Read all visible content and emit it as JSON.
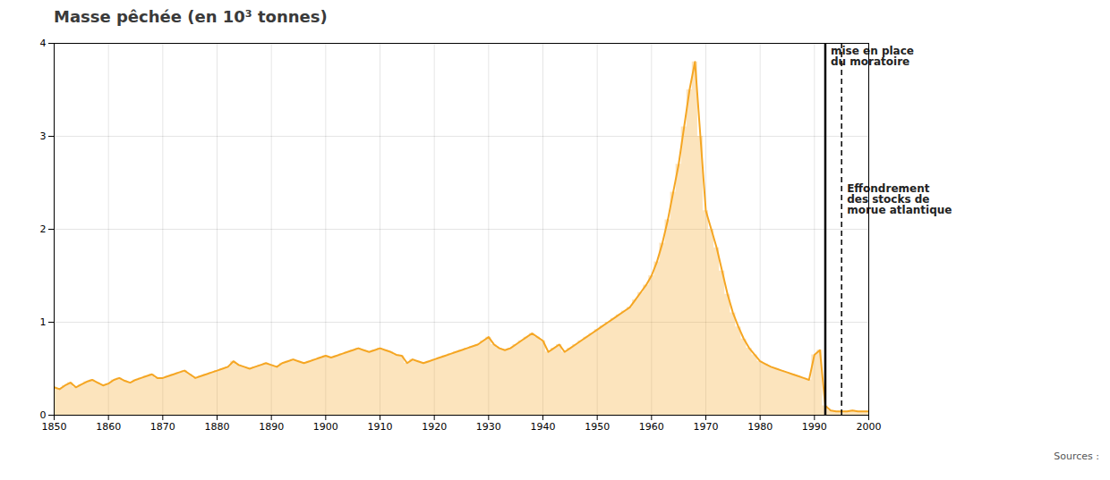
{
  "chart_data": {
    "type": "line",
    "title": "Masse pêchée (en 10³ tonnes)",
    "color": "#f5a623",
    "grid": true,
    "xlim": [
      1850,
      2000
    ],
    "ylim": [
      0,
      4
    ],
    "xticks": [
      1850,
      1860,
      1870,
      1880,
      1890,
      1900,
      1910,
      1920,
      1930,
      1940,
      1950,
      1960,
      1970,
      1980,
      1990,
      2000
    ],
    "yticks": [
      0,
      1,
      2,
      3,
      4
    ],
    "x": [
      1850,
      1851,
      1852,
      1853,
      1854,
      1855,
      1856,
      1857,
      1858,
      1859,
      1860,
      1861,
      1862,
      1863,
      1864,
      1865,
      1866,
      1867,
      1868,
      1869,
      1870,
      1871,
      1872,
      1873,
      1874,
      1875,
      1876,
      1877,
      1878,
      1879,
      1880,
      1881,
      1882,
      1883,
      1884,
      1885,
      1886,
      1887,
      1888,
      1889,
      1890,
      1891,
      1892,
      1893,
      1894,
      1895,
      1896,
      1897,
      1898,
      1899,
      1900,
      1901,
      1902,
      1903,
      1904,
      1905,
      1906,
      1907,
      1908,
      1909,
      1910,
      1911,
      1912,
      1913,
      1914,
      1915,
      1916,
      1917,
      1918,
      1919,
      1920,
      1921,
      1922,
      1923,
      1924,
      1925,
      1926,
      1927,
      1928,
      1929,
      1930,
      1931,
      1932,
      1933,
      1934,
      1935,
      1936,
      1937,
      1938,
      1939,
      1940,
      1941,
      1942,
      1943,
      1944,
      1945,
      1946,
      1947,
      1948,
      1949,
      1950,
      1951,
      1952,
      1953,
      1954,
      1955,
      1956,
      1957,
      1958,
      1959,
      1960,
      1961,
      1962,
      1963,
      1964,
      1965,
      1966,
      1967,
      1968,
      1969,
      1970,
      1971,
      1972,
      1973,
      1974,
      1975,
      1976,
      1977,
      1978,
      1979,
      1980,
      1981,
      1982,
      1983,
      1984,
      1985,
      1986,
      1987,
      1988,
      1989,
      1990,
      1991,
      1992,
      1993,
      1994,
      1995,
      1996,
      1997,
      1998,
      1999,
      2000
    ],
    "values": [
      0.3,
      0.28,
      0.32,
      0.35,
      0.3,
      0.33,
      0.36,
      0.38,
      0.35,
      0.32,
      0.34,
      0.38,
      0.4,
      0.37,
      0.35,
      0.38,
      0.4,
      0.42,
      0.44,
      0.4,
      0.4,
      0.42,
      0.44,
      0.46,
      0.48,
      0.44,
      0.4,
      0.42,
      0.44,
      0.46,
      0.48,
      0.5,
      0.52,
      0.58,
      0.54,
      0.52,
      0.5,
      0.52,
      0.54,
      0.56,
      0.54,
      0.52,
      0.56,
      0.58,
      0.6,
      0.58,
      0.56,
      0.58,
      0.6,
      0.62,
      0.64,
      0.62,
      0.64,
      0.66,
      0.68,
      0.7,
      0.72,
      0.7,
      0.68,
      0.7,
      0.72,
      0.7,
      0.68,
      0.65,
      0.64,
      0.56,
      0.6,
      0.58,
      0.56,
      0.58,
      0.6,
      0.62,
      0.64,
      0.66,
      0.68,
      0.7,
      0.72,
      0.74,
      0.76,
      0.8,
      0.84,
      0.76,
      0.72,
      0.7,
      0.72,
      0.76,
      0.8,
      0.84,
      0.88,
      0.84,
      0.8,
      0.68,
      0.72,
      0.76,
      0.68,
      0.72,
      0.76,
      0.8,
      0.84,
      0.88,
      0.92,
      0.96,
      1.0,
      1.04,
      1.08,
      1.12,
      1.16,
      1.24,
      1.32,
      1.4,
      1.5,
      1.65,
      1.85,
      2.1,
      2.4,
      2.7,
      3.1,
      3.5,
      3.8,
      3.0,
      2.2,
      2.0,
      1.8,
      1.55,
      1.3,
      1.1,
      0.95,
      0.82,
      0.72,
      0.65,
      0.58,
      0.55,
      0.52,
      0.5,
      0.48,
      0.46,
      0.44,
      0.42,
      0.4,
      0.38,
      0.65,
      0.7,
      0.1,
      0.05,
      0.04,
      0.04,
      0.04,
      0.05,
      0.04,
      0.04,
      0.04
    ],
    "vlines": [
      {
        "x": 1992,
        "line_style": "solid"
      },
      {
        "x": 1995,
        "line_style": "dashed"
      }
    ],
    "annotations": [
      {
        "text": "mise en place\ndu moratoire",
        "x": 1992
      },
      {
        "text": "Effondrement\ndes stocks de\nmorue atlantique",
        "x": 1995
      }
    ],
    "source": "Sources :"
  }
}
